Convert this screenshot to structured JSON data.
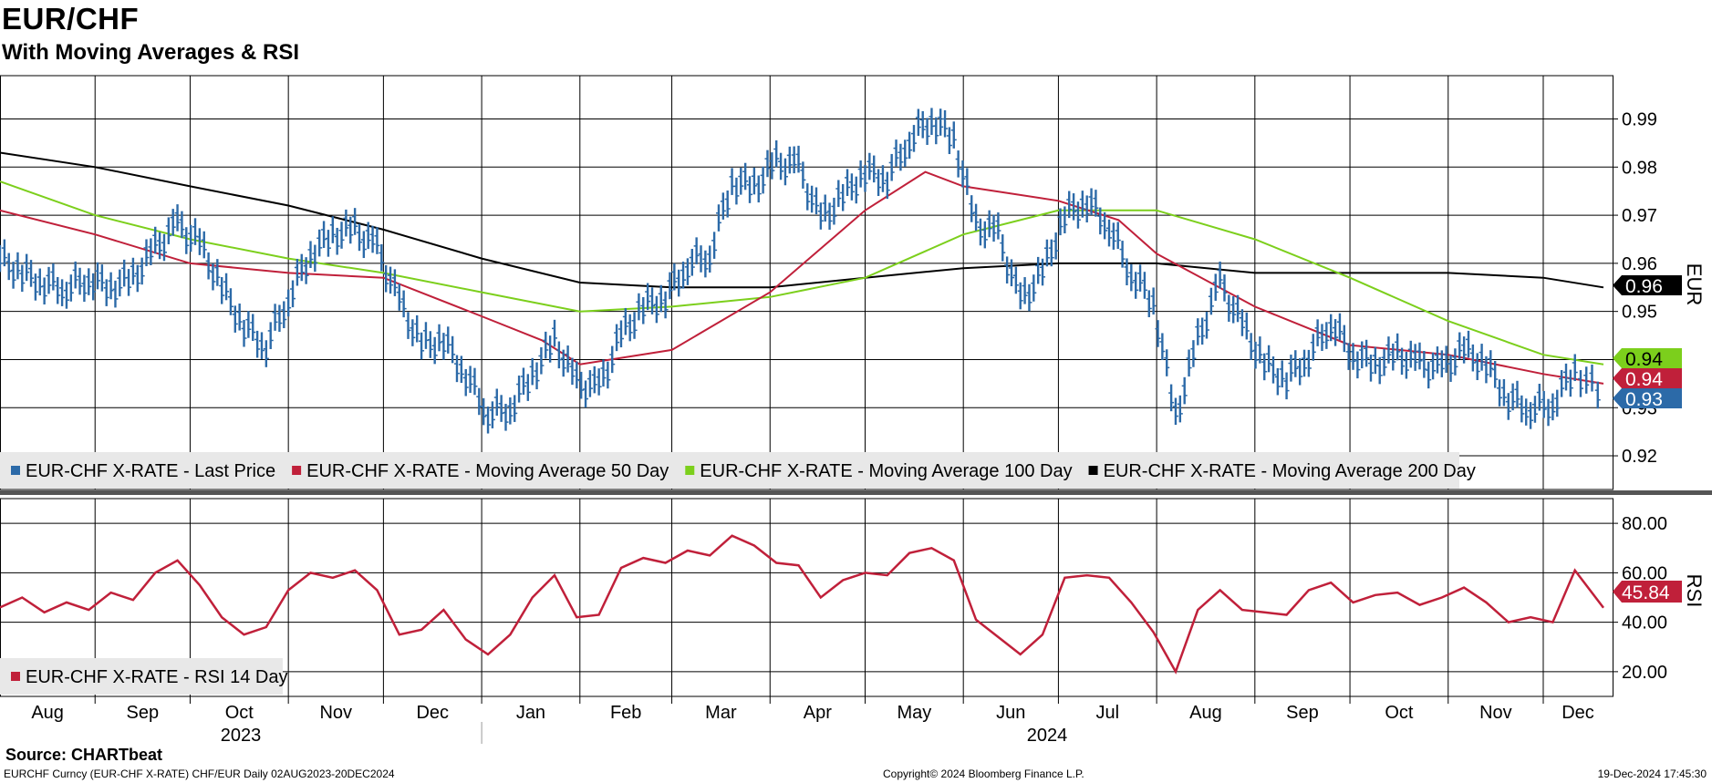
{
  "header": {
    "title": "EUR/CHF",
    "subtitle": "With Moving Averages & RSI"
  },
  "footer": {
    "source": "Source: CHARTbeat",
    "security": "EURCHF Curncy (EUR-CHF X-RATE) CHF/EUR  Daily 02AUG2023-20DEC2024",
    "copyright": "Copyright© 2024 Bloomberg Finance L.P.",
    "timestamp": "19-Dec-2024 17:45:30"
  },
  "colors": {
    "price": "#2c6aa8",
    "ma50": "#c0203a",
    "ma100": "#7ccf1c",
    "ma200": "#000000",
    "rsi": "#c0203a",
    "grid": "#000000",
    "legend_bg": "#e8e8e8",
    "divider": "#555555"
  },
  "chart_data": [
    {
      "type": "ohlc-bar-line",
      "name": "price-panel",
      "y_axis_label": "EUR",
      "ylim": [
        0.913,
        0.999
      ],
      "y_ticks": [
        "0.92",
        "0.93",
        "0.94",
        "0.95",
        "0.96",
        "0.97",
        "0.98",
        "0.99"
      ],
      "x_ticks_months": [
        "Aug",
        "Sep",
        "Oct",
        "Nov",
        "Dec",
        "Jan",
        "Feb",
        "Mar",
        "Apr",
        "May",
        "Jun",
        "Jul",
        "Aug",
        "Sep",
        "Oct",
        "Nov",
        "Dec"
      ],
      "x_years": [
        "2023",
        "2024"
      ],
      "x_range": [
        "2023-08-02",
        "2024-12-20"
      ],
      "grid": true,
      "legend_position": "bottom-left",
      "last_value_labels": [
        {
          "text": "0.94",
          "series": "ma100"
        },
        {
          "text": "0.96",
          "series": "ma200"
        },
        {
          "text": "0.94",
          "series": "ma50"
        },
        {
          "text": "0.93",
          "series": "price"
        }
      ],
      "series": [
        {
          "name": "EUR-CHF X-RATE - Last Price",
          "key": "price",
          "points": [
            [
              "2023-08-02",
              0.961
            ],
            [
              "2023-08-09",
              0.958
            ],
            [
              "2023-08-16",
              0.956
            ],
            [
              "2023-08-23",
              0.955
            ],
            [
              "2023-08-30",
              0.957
            ],
            [
              "2023-09-06",
              0.955
            ],
            [
              "2023-09-13",
              0.957
            ],
            [
              "2023-09-20",
              0.963
            ],
            [
              "2023-09-27",
              0.968
            ],
            [
              "2023-10-04",
              0.964
            ],
            [
              "2023-10-11",
              0.955
            ],
            [
              "2023-10-18",
              0.947
            ],
            [
              "2023-10-25",
              0.943
            ],
            [
              "2023-11-01",
              0.953
            ],
            [
              "2023-11-08",
              0.962
            ],
            [
              "2023-11-15",
              0.966
            ],
            [
              "2023-11-22",
              0.967
            ],
            [
              "2023-11-29",
              0.963
            ],
            [
              "2023-12-06",
              0.952
            ],
            [
              "2023-12-13",
              0.943
            ],
            [
              "2023-12-20",
              0.944
            ],
            [
              "2023-12-27",
              0.937
            ],
            [
              "2024-01-03",
              0.929
            ],
            [
              "2024-01-10",
              0.93
            ],
            [
              "2024-01-17",
              0.937
            ],
            [
              "2024-01-24",
              0.944
            ],
            [
              "2024-01-31",
              0.935
            ],
            [
              "2024-02-07",
              0.934
            ],
            [
              "2024-02-14",
              0.945
            ],
            [
              "2024-02-21",
              0.951
            ],
            [
              "2024-02-28",
              0.953
            ],
            [
              "2024-03-06",
              0.96
            ],
            [
              "2024-03-13",
              0.962
            ],
            [
              "2024-03-20",
              0.977
            ],
            [
              "2024-03-27",
              0.976
            ],
            [
              "2024-04-03",
              0.981
            ],
            [
              "2024-04-10",
              0.98
            ],
            [
              "2024-04-17",
              0.969
            ],
            [
              "2024-04-24",
              0.974
            ],
            [
              "2024-05-01",
              0.979
            ],
            [
              "2024-05-08",
              0.978
            ],
            [
              "2024-05-15",
              0.986
            ],
            [
              "2024-05-22",
              0.99
            ],
            [
              "2024-05-29",
              0.986
            ],
            [
              "2024-06-05",
              0.968
            ],
            [
              "2024-06-12",
              0.966
            ],
            [
              "2024-06-19",
              0.952
            ],
            [
              "2024-06-26",
              0.958
            ],
            [
              "2024-07-03",
              0.97
            ],
            [
              "2024-07-10",
              0.973
            ],
            [
              "2024-07-17",
              0.968
            ],
            [
              "2024-07-24",
              0.958
            ],
            [
              "2024-07-31",
              0.952
            ],
            [
              "2024-08-07",
              0.928
            ],
            [
              "2024-08-14",
              0.944
            ],
            [
              "2024-08-21",
              0.956
            ],
            [
              "2024-08-28",
              0.947
            ],
            [
              "2024-09-04",
              0.939
            ],
            [
              "2024-09-11",
              0.936
            ],
            [
              "2024-09-18",
              0.941
            ],
            [
              "2024-09-25",
              0.948
            ],
            [
              "2024-10-02",
              0.941
            ],
            [
              "2024-10-09",
              0.939
            ],
            [
              "2024-10-16",
              0.941
            ],
            [
              "2024-10-23",
              0.939
            ],
            [
              "2024-10-30",
              0.938
            ],
            [
              "2024-11-06",
              0.942
            ],
            [
              "2024-11-13",
              0.939
            ],
            [
              "2024-11-20",
              0.932
            ],
            [
              "2024-11-27",
              0.93
            ],
            [
              "2024-12-04",
              0.931
            ],
            [
              "2024-12-11",
              0.938
            ],
            [
              "2024-12-20",
              0.932
            ]
          ]
        },
        {
          "name": "EUR-CHF X-RATE - Moving Average 50 Day",
          "key": "ma50",
          "points": [
            [
              "2023-08-02",
              0.971
            ],
            [
              "2023-09-01",
              0.966
            ],
            [
              "2023-10-01",
              0.96
            ],
            [
              "2023-11-01",
              0.958
            ],
            [
              "2023-12-01",
              0.957
            ],
            [
              "2024-01-01",
              0.949
            ],
            [
              "2024-01-20",
              0.944
            ],
            [
              "2024-02-01",
              0.939
            ],
            [
              "2024-03-01",
              0.942
            ],
            [
              "2024-04-01",
              0.954
            ],
            [
              "2024-05-01",
              0.971
            ],
            [
              "2024-05-20",
              0.979
            ],
            [
              "2024-06-01",
              0.976
            ],
            [
              "2024-07-01",
              0.973
            ],
            [
              "2024-07-20",
              0.969
            ],
            [
              "2024-08-01",
              0.962
            ],
            [
              "2024-09-01",
              0.951
            ],
            [
              "2024-10-01",
              0.943
            ],
            [
              "2024-11-01",
              0.941
            ],
            [
              "2024-12-01",
              0.937
            ],
            [
              "2024-12-20",
              0.935
            ]
          ]
        },
        {
          "name": "EUR-CHF X-RATE - Moving Average 100 Day",
          "key": "ma100",
          "points": [
            [
              "2023-08-02",
              0.977
            ],
            [
              "2023-09-01",
              0.97
            ],
            [
              "2023-10-01",
              0.965
            ],
            [
              "2023-11-01",
              0.961
            ],
            [
              "2023-12-01",
              0.958
            ],
            [
              "2024-01-01",
              0.954
            ],
            [
              "2024-02-01",
              0.95
            ],
            [
              "2024-03-01",
              0.951
            ],
            [
              "2024-04-01",
              0.953
            ],
            [
              "2024-05-01",
              0.957
            ],
            [
              "2024-06-01",
              0.966
            ],
            [
              "2024-07-01",
              0.971
            ],
            [
              "2024-08-01",
              0.971
            ],
            [
              "2024-09-01",
              0.965
            ],
            [
              "2024-10-01",
              0.957
            ],
            [
              "2024-11-01",
              0.948
            ],
            [
              "2024-12-01",
              0.941
            ],
            [
              "2024-12-20",
              0.939
            ]
          ]
        },
        {
          "name": "EUR-CHF X-RATE - Moving Average 200 Day",
          "key": "ma200",
          "points": [
            [
              "2023-08-02",
              0.983
            ],
            [
              "2023-09-01",
              0.98
            ],
            [
              "2023-10-01",
              0.976
            ],
            [
              "2023-11-01",
              0.972
            ],
            [
              "2023-12-01",
              0.967
            ],
            [
              "2024-01-01",
              0.961
            ],
            [
              "2024-02-01",
              0.956
            ],
            [
              "2024-03-01",
              0.955
            ],
            [
              "2024-04-01",
              0.955
            ],
            [
              "2024-05-01",
              0.957
            ],
            [
              "2024-06-01",
              0.959
            ],
            [
              "2024-07-01",
              0.96
            ],
            [
              "2024-08-01",
              0.96
            ],
            [
              "2024-09-01",
              0.958
            ],
            [
              "2024-10-01",
              0.958
            ],
            [
              "2024-11-01",
              0.958
            ],
            [
              "2024-12-01",
              0.957
            ],
            [
              "2024-12-20",
              0.955
            ]
          ]
        }
      ]
    },
    {
      "type": "line",
      "name": "rsi-panel",
      "y_axis_label": "RSI",
      "ylim": [
        10,
        90
      ],
      "y_ticks": [
        "20.00",
        "40.00",
        "60.00",
        "80.00"
      ],
      "x_range": [
        "2023-08-02",
        "2024-12-20"
      ],
      "grid": true,
      "legend_position": "bottom-left",
      "last_value_labels": [
        {
          "text": "45.84",
          "series": "rsi"
        }
      ],
      "series": [
        {
          "name": "EUR-CHF X-RATE - RSI 14 Day",
          "key": "rsi",
          "points": [
            [
              "2023-08-02",
              46
            ],
            [
              "2023-08-09",
              50
            ],
            [
              "2023-08-16",
              44
            ],
            [
              "2023-08-23",
              48
            ],
            [
              "2023-08-30",
              45
            ],
            [
              "2023-09-06",
              52
            ],
            [
              "2023-09-13",
              49
            ],
            [
              "2023-09-20",
              60
            ],
            [
              "2023-09-27",
              65
            ],
            [
              "2023-10-04",
              55
            ],
            [
              "2023-10-11",
              42
            ],
            [
              "2023-10-18",
              35
            ],
            [
              "2023-10-25",
              38
            ],
            [
              "2023-11-01",
              53
            ],
            [
              "2023-11-08",
              60
            ],
            [
              "2023-11-15",
              58
            ],
            [
              "2023-11-22",
              61
            ],
            [
              "2023-11-29",
              53
            ],
            [
              "2023-12-06",
              35
            ],
            [
              "2023-12-13",
              37
            ],
            [
              "2023-12-20",
              45
            ],
            [
              "2023-12-27",
              33
            ],
            [
              "2024-01-03",
              27
            ],
            [
              "2024-01-10",
              35
            ],
            [
              "2024-01-17",
              50
            ],
            [
              "2024-01-24",
              59
            ],
            [
              "2024-01-31",
              42
            ],
            [
              "2024-02-07",
              43
            ],
            [
              "2024-02-14",
              62
            ],
            [
              "2024-02-21",
              66
            ],
            [
              "2024-02-28",
              64
            ],
            [
              "2024-03-06",
              69
            ],
            [
              "2024-03-13",
              67
            ],
            [
              "2024-03-20",
              75
            ],
            [
              "2024-03-27",
              71
            ],
            [
              "2024-04-03",
              64
            ],
            [
              "2024-04-10",
              63
            ],
            [
              "2024-04-17",
              50
            ],
            [
              "2024-04-24",
              57
            ],
            [
              "2024-05-01",
              60
            ],
            [
              "2024-05-08",
              59
            ],
            [
              "2024-05-15",
              68
            ],
            [
              "2024-05-22",
              70
            ],
            [
              "2024-05-29",
              65
            ],
            [
              "2024-06-05",
              41
            ],
            [
              "2024-06-12",
              34
            ],
            [
              "2024-06-19",
              27
            ],
            [
              "2024-06-26",
              35
            ],
            [
              "2024-07-03",
              58
            ],
            [
              "2024-07-10",
              59
            ],
            [
              "2024-07-17",
              58
            ],
            [
              "2024-07-24",
              48
            ],
            [
              "2024-07-31",
              36
            ],
            [
              "2024-08-07",
              20
            ],
            [
              "2024-08-14",
              45
            ],
            [
              "2024-08-21",
              53
            ],
            [
              "2024-08-28",
              45
            ],
            [
              "2024-09-04",
              44
            ],
            [
              "2024-09-11",
              43
            ],
            [
              "2024-09-18",
              53
            ],
            [
              "2024-09-25",
              56
            ],
            [
              "2024-10-02",
              48
            ],
            [
              "2024-10-09",
              51
            ],
            [
              "2024-10-16",
              52
            ],
            [
              "2024-10-23",
              47
            ],
            [
              "2024-10-30",
              50
            ],
            [
              "2024-11-06",
              54
            ],
            [
              "2024-11-13",
              48
            ],
            [
              "2024-11-20",
              40
            ],
            [
              "2024-11-27",
              42
            ],
            [
              "2024-12-04",
              40
            ],
            [
              "2024-12-11",
              61
            ],
            [
              "2024-12-20",
              45.84
            ]
          ]
        }
      ]
    }
  ]
}
